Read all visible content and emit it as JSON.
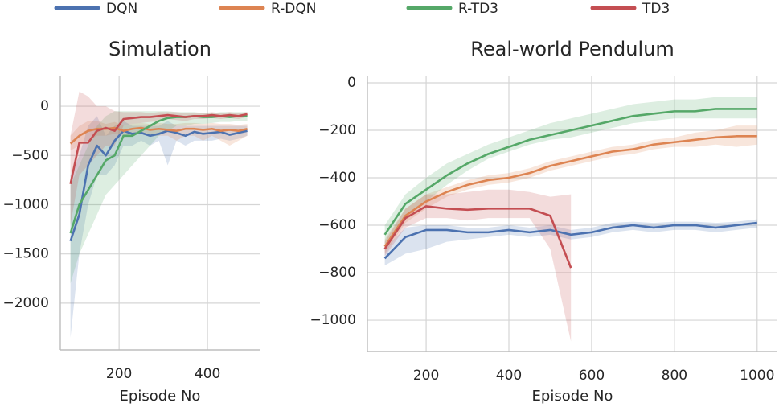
{
  "chart_data": [
    {
      "type": "line",
      "title": "Simulation",
      "x_label": "Episode No",
      "x": [
        90,
        110,
        130,
        150,
        170,
        190,
        210,
        230,
        250,
        270,
        290,
        310,
        330,
        350,
        370,
        390,
        410,
        430,
        450,
        470,
        490
      ],
      "xlim": [
        67,
        518
      ],
      "xticks": [
        200,
        400
      ],
      "ylim": [
        -2475,
        303
      ],
      "yticks": [
        {
          "value": 0,
          "label": "0"
        },
        {
          "value": -500,
          "label": "−500"
        },
        {
          "value": -1000,
          "label": "−1000"
        },
        {
          "value": -1500,
          "label": "−1500"
        },
        {
          "value": -2000,
          "label": "−2000"
        }
      ],
      "grid": true,
      "series": [
        {
          "name": "DQN",
          "color": "#4c72b0",
          "values": [
            -1370,
            -1100,
            -600,
            -400,
            -500,
            -350,
            -250,
            -280,
            -270,
            -300,
            -280,
            -250,
            -270,
            -300,
            -260,
            -280,
            -270,
            -260,
            -290,
            -270,
            -250
          ],
          "lower": [
            -2350,
            -1500,
            -1000,
            -700,
            -700,
            -600,
            -400,
            -400,
            -350,
            -400,
            -350,
            -600,
            -350,
            -400,
            -350,
            -350,
            -350,
            -330,
            -350,
            -330,
            -300
          ],
          "upper": [
            -700,
            -500,
            -200,
            -100,
            -300,
            -200,
            -150,
            -200,
            -200,
            -200,
            -200,
            -150,
            -200,
            -200,
            -200,
            -200,
            -200,
            -200,
            -200,
            -200,
            -200
          ]
        },
        {
          "name": "R-DQN",
          "color": "#dd8452",
          "values": [
            -380,
            -300,
            -250,
            -230,
            -230,
            -220,
            -250,
            -230,
            -220,
            -240,
            -230,
            -240,
            -250,
            -230,
            -230,
            -240,
            -230,
            -250,
            -240,
            -250,
            -230
          ],
          "lower": [
            -450,
            -400,
            -350,
            -300,
            -300,
            -280,
            -300,
            -280,
            -280,
            -300,
            -300,
            -300,
            -350,
            -300,
            -300,
            -350,
            -300,
            -350,
            -400,
            -350,
            -300
          ],
          "upper": [
            -300,
            -200,
            -150,
            -150,
            -180,
            -160,
            -200,
            -180,
            -170,
            -180,
            -170,
            -180,
            -180,
            -170,
            -170,
            -180,
            -170,
            -180,
            -180,
            -190,
            -180
          ]
        },
        {
          "name": "R-TD3",
          "color": "#55a868",
          "values": [
            -1290,
            -1000,
            -850,
            -700,
            -550,
            -500,
            -300,
            -300,
            -250,
            -200,
            -150,
            -120,
            -110,
            -110,
            -100,
            -110,
            -110,
            -100,
            -110,
            -100,
            -100
          ],
          "lower": [
            -1800,
            -1500,
            -1300,
            -1100,
            -900,
            -800,
            -700,
            -600,
            -500,
            -400,
            -300,
            -250,
            -200,
            -200,
            -180,
            -180,
            -170,
            -160,
            -160,
            -150,
            -150
          ],
          "upper": [
            -800,
            -600,
            -400,
            -200,
            -100,
            -50,
            -50,
            -50,
            -50,
            -50,
            -50,
            -50,
            -60,
            -60,
            -60,
            -70,
            -70,
            -60,
            -60,
            -60,
            -60
          ]
        },
        {
          "name": "TD3",
          "color": "#c44e52",
          "values": [
            -790,
            -370,
            -370,
            -250,
            -220,
            -250,
            -130,
            -120,
            -110,
            -110,
            -100,
            -90,
            -100,
            -110,
            -100,
            -100,
            -90,
            -100,
            -90,
            -100,
            -80
          ],
          "lower": [
            -1200,
            -700,
            -600,
            -500,
            -400,
            -400,
            -200,
            -180,
            -170,
            -160,
            -150,
            -130,
            -140,
            -150,
            -130,
            -130,
            -120,
            -130,
            -120,
            -130,
            -110
          ],
          "upper": [
            -300,
            150,
            100,
            0,
            0,
            -50,
            -60,
            -60,
            -60,
            -70,
            -60,
            -60,
            -60,
            -70,
            -70,
            -70,
            -60,
            -70,
            -60,
            -70,
            -60
          ]
        }
      ]
    },
    {
      "type": "line",
      "title": "Real-world Pendulum",
      "x_label": "Episode No",
      "x": [
        100,
        150,
        200,
        250,
        300,
        350,
        400,
        450,
        500,
        550,
        600,
        650,
        700,
        750,
        800,
        850,
        900,
        950,
        1000
      ],
      "xlim": [
        58,
        1049
      ],
      "xticks": [
        200,
        400,
        600,
        800,
        1000
      ],
      "ylim": [
        -1132,
        27
      ],
      "yticks": [
        {
          "value": 0,
          "label": "0"
        },
        {
          "value": -200,
          "label": "−200"
        },
        {
          "value": -400,
          "label": "−400"
        },
        {
          "value": -600,
          "label": "−600"
        },
        {
          "value": -800,
          "label": "−800"
        },
        {
          "value": -1000,
          "label": "−1000"
        }
      ],
      "grid": true,
      "series": [
        {
          "color": "#4c72b0",
          "values": [
            -740,
            -650,
            -620,
            -620,
            -630,
            -630,
            -620,
            -630,
            -620,
            -640,
            -630,
            -610,
            -600,
            -610,
            -600,
            -600,
            -610,
            -600,
            -590
          ],
          "lower": [
            -770,
            -720,
            -700,
            -670,
            -660,
            -650,
            -640,
            -650,
            -640,
            -660,
            -650,
            -630,
            -620,
            -630,
            -620,
            -620,
            -630,
            -620,
            -610
          ],
          "upper": [
            -700,
            -610,
            -600,
            -600,
            -610,
            -610,
            -600,
            -610,
            -600,
            -620,
            -610,
            -590,
            -585,
            -590,
            -585,
            -585,
            -590,
            -585,
            -575
          ]
        },
        {
          "color": "#dd8452",
          "values": [
            -690,
            -560,
            -500,
            -460,
            -430,
            -410,
            -400,
            -380,
            -350,
            -330,
            -310,
            -290,
            -280,
            -260,
            -250,
            -240,
            -230,
            -225,
            -225
          ],
          "lower": [
            -720,
            -590,
            -530,
            -480,
            -450,
            -430,
            -420,
            -400,
            -370,
            -350,
            -330,
            -310,
            -300,
            -280,
            -270,
            -270,
            -260,
            -270,
            -260
          ],
          "upper": [
            -660,
            -530,
            -470,
            -440,
            -410,
            -390,
            -380,
            -360,
            -330,
            -310,
            -290,
            -270,
            -260,
            -240,
            -230,
            -210,
            -200,
            -180,
            -180
          ]
        },
        {
          "color": "#55a868",
          "values": [
            -640,
            -510,
            -450,
            -390,
            -340,
            -300,
            -270,
            -240,
            -220,
            -200,
            -180,
            -160,
            -140,
            -130,
            -120,
            -120,
            -110,
            -110,
            -110
          ],
          "lower": [
            -680,
            -560,
            -500,
            -430,
            -370,
            -320,
            -290,
            -260,
            -240,
            -230,
            -210,
            -190,
            -170,
            -160,
            -150,
            -150,
            -150,
            -150,
            -150
          ],
          "upper": [
            -600,
            -470,
            -400,
            -340,
            -300,
            -260,
            -230,
            -200,
            -170,
            -150,
            -130,
            -110,
            -90,
            -80,
            -70,
            -70,
            -60,
            -60,
            -60
          ]
        },
        {
          "color": "#c44e52",
          "values": [
            -700,
            -570,
            -520,
            -530,
            -535,
            -530,
            -530,
            -530,
            -560,
            -780,
            null,
            null,
            null,
            null,
            null,
            null,
            null,
            null,
            null
          ],
          "lower": [
            -730,
            -610,
            -570,
            -570,
            -580,
            -570,
            -570,
            -570,
            -700,
            -1090,
            null,
            null,
            null,
            null,
            null,
            null,
            null,
            null,
            null
          ],
          "upper": [
            -670,
            -530,
            -470,
            -470,
            -460,
            -450,
            -450,
            -460,
            -480,
            -470,
            null,
            null,
            null,
            null,
            null,
            null,
            null,
            null,
            null
          ]
        }
      ]
    }
  ]
}
